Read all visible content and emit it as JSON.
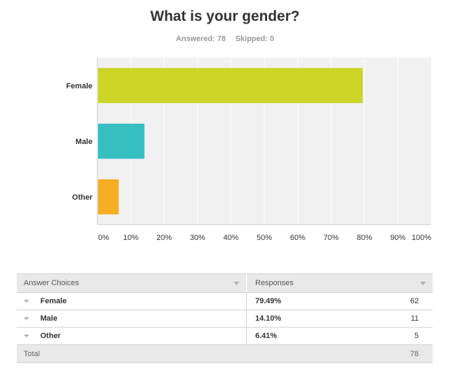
{
  "question": {
    "title": "What is your gender?",
    "answered_label": "Answered: 78",
    "skipped_label": "Skipped: 0"
  },
  "chart_data": {
    "type": "bar",
    "orientation": "horizontal",
    "title": "What is your gender?",
    "categories": [
      "Female",
      "Male",
      "Other"
    ],
    "values": [
      79.49,
      14.1,
      6.41
    ],
    "colors": [
      "#cdd526",
      "#35bfc1",
      "#f6ae24"
    ],
    "xlim": [
      0,
      100
    ],
    "xticks": [
      "0%",
      "10%",
      "20%",
      "30%",
      "40%",
      "50%",
      "60%",
      "70%",
      "80%",
      "90%",
      "100%"
    ],
    "grid": true,
    "legend": "none"
  },
  "table": {
    "headers": {
      "choices": "Answer Choices",
      "responses": "Responses"
    },
    "rows": [
      {
        "choice": "Female",
        "percent": "79.49%",
        "count": "62"
      },
      {
        "choice": "Male",
        "percent": "14.10%",
        "count": "11"
      },
      {
        "choice": "Other",
        "percent": "6.41%",
        "count": "5"
      }
    ],
    "total": {
      "label": "Total",
      "value": "78"
    }
  }
}
